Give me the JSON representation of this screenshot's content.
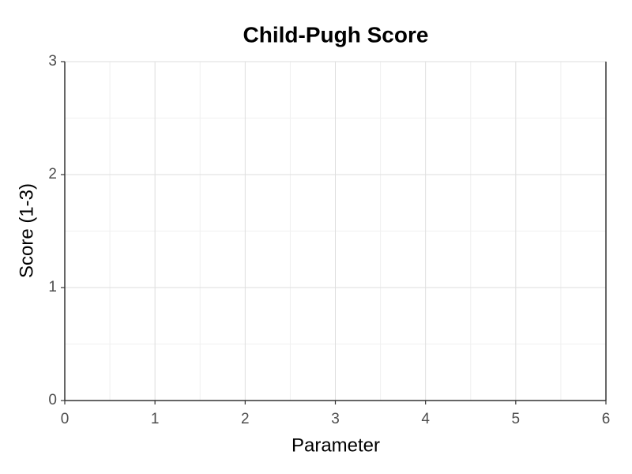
{
  "chart_data": {
    "type": "scatter",
    "title": "Child-Pugh Score",
    "xlabel": "Parameter",
    "ylabel": "Score (1-3)",
    "xlim": [
      0,
      6
    ],
    "xticks": [
      0,
      1,
      2,
      3,
      4,
      5,
      6
    ],
    "ylim": [
      0,
      3
    ],
    "yticks": [
      0,
      1,
      2,
      3
    ],
    "grid": true
  }
}
